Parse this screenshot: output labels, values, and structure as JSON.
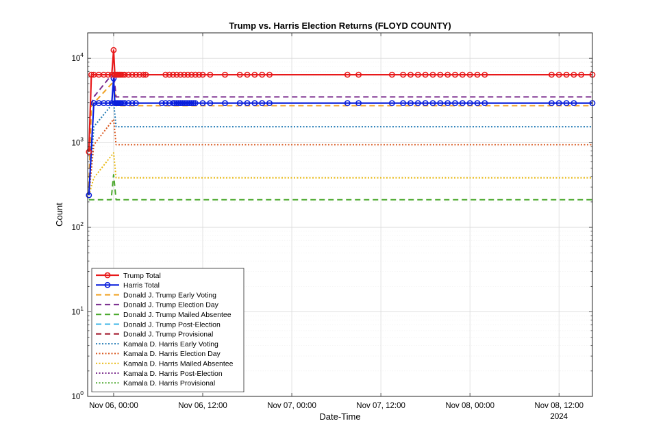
{
  "chart_data": {
    "type": "line",
    "title": "Trump vs. Harris Election Returns (FLOYD COUNTY)",
    "xlabel": "Date-Time",
    "ylabel": "Count",
    "y_scale": "log",
    "ylim": [
      1,
      20000
    ],
    "xlim": [
      "2024-11-05 20:30",
      "2024-11-08 16:30"
    ],
    "x_ticks": [
      "Nov 06, 00:00",
      "Nov 06, 12:00",
      "Nov 07, 00:00",
      "Nov 07, 12:00",
      "Nov 08, 00:00",
      "Nov 08, 12:00"
    ],
    "x_tick_times": [
      "2024-11-06 00:00",
      "2024-11-06 12:00",
      "2024-11-07 00:00",
      "2024-11-07 12:00",
      "2024-11-08 00:00",
      "2024-11-08 12:00"
    ],
    "x_year_label": "2024",
    "y_ticks": [
      {
        "value": 1,
        "base": "10",
        "exp": "0"
      },
      {
        "value": 10,
        "base": "10",
        "exp": "1"
      },
      {
        "value": 100,
        "base": "10",
        "exp": "2"
      },
      {
        "value": 1000,
        "base": "10",
        "exp": "3"
      },
      {
        "value": 10000,
        "base": "10",
        "exp": "4"
      }
    ],
    "grid": true,
    "legend_position": "bottom-left",
    "series": [
      {
        "name": "Trump Total",
        "color": "#e8191a",
        "style": "solid",
        "marker": "circle",
        "x": [
          "2024-11-05 20:40",
          "2024-11-05 21:00",
          "2024-11-05 21:20",
          "2024-11-05 22:00",
          "2024-11-05 22:40",
          "2024-11-05 23:15",
          "2024-11-05 23:45",
          "2024-11-06 00:00",
          "2024-11-06 00:10",
          "2024-11-06 00:20",
          "2024-11-06 00:30",
          "2024-11-06 00:40",
          "2024-11-06 00:50",
          "2024-11-06 01:00",
          "2024-11-06 01:15",
          "2024-11-06 01:30",
          "2024-11-06 02:00",
          "2024-11-06 02:30",
          "2024-11-06 03:00",
          "2024-11-06 03:30",
          "2024-11-06 04:00",
          "2024-11-06 04:20",
          "2024-11-06 07:00",
          "2024-11-06 07:30",
          "2024-11-06 08:00",
          "2024-11-06 08:30",
          "2024-11-06 09:00",
          "2024-11-06 09:30",
          "2024-11-06 10:00",
          "2024-11-06 10:30",
          "2024-11-06 11:00",
          "2024-11-06 11:30",
          "2024-11-06 12:00",
          "2024-11-06 13:00",
          "2024-11-06 15:00",
          "2024-11-06 17:00",
          "2024-11-06 18:00",
          "2024-11-06 19:00",
          "2024-11-06 20:00",
          "2024-11-06 21:00",
          "2024-11-07 07:30",
          "2024-11-07 09:00",
          "2024-11-07 13:30",
          "2024-11-07 15:00",
          "2024-11-07 16:00",
          "2024-11-07 17:00",
          "2024-11-07 18:00",
          "2024-11-07 19:00",
          "2024-11-07 20:00",
          "2024-11-07 21:00",
          "2024-11-07 22:00",
          "2024-11-07 23:00",
          "2024-11-08 00:00",
          "2024-11-08 01:00",
          "2024-11-08 02:00",
          "2024-11-08 11:00",
          "2024-11-08 12:00",
          "2024-11-08 13:00",
          "2024-11-08 14:00",
          "2024-11-08 15:00",
          "2024-11-08 16:30"
        ],
        "y": [
          780,
          6400,
          6400,
          6400,
          6400,
          6400,
          6400,
          12500,
          6400,
          6400,
          6400,
          6400,
          6400,
          6400,
          6400,
          6400,
          6400,
          6400,
          6400,
          6400,
          6400,
          6400,
          6400,
          6400,
          6400,
          6400,
          6400,
          6400,
          6400,
          6400,
          6400,
          6400,
          6400,
          6400,
          6400,
          6400,
          6400,
          6400,
          6400,
          6400,
          6400,
          6400,
          6400,
          6400,
          6400,
          6400,
          6400,
          6400,
          6400,
          6400,
          6400,
          6400,
          6400,
          6400,
          6400,
          6400,
          6400,
          6400,
          6400,
          6400,
          6400
        ]
      },
      {
        "name": "Harris Total",
        "color": "#0a1fdc",
        "style": "solid",
        "marker": "circle",
        "x": [
          "2024-11-05 20:40",
          "2024-11-05 21:20",
          "2024-11-05 22:00",
          "2024-11-05 22:40",
          "2024-11-05 23:15",
          "2024-11-05 23:45",
          "2024-11-06 00:00",
          "2024-11-06 00:10",
          "2024-11-06 00:20",
          "2024-11-06 00:30",
          "2024-11-06 00:40",
          "2024-11-06 00:50",
          "2024-11-06 01:00",
          "2024-11-06 01:15",
          "2024-11-06 01:30",
          "2024-11-06 02:00",
          "2024-11-06 02:30",
          "2024-11-06 03:00",
          "2024-11-06 06:30",
          "2024-11-06 07:00",
          "2024-11-06 07:30",
          "2024-11-06 08:00",
          "2024-11-06 08:15",
          "2024-11-06 08:30",
          "2024-11-06 08:45",
          "2024-11-06 09:00",
          "2024-11-06 09:15",
          "2024-11-06 09:30",
          "2024-11-06 09:45",
          "2024-11-06 10:00",
          "2024-11-06 10:15",
          "2024-11-06 10:30",
          "2024-11-06 10:45",
          "2024-11-06 11:00",
          "2024-11-06 12:00",
          "2024-11-06 13:00",
          "2024-11-06 15:00",
          "2024-11-06 17:00",
          "2024-11-06 18:00",
          "2024-11-06 19:00",
          "2024-11-06 20:00",
          "2024-11-06 21:00",
          "2024-11-07 07:30",
          "2024-11-07 09:00",
          "2024-11-07 13:30",
          "2024-11-07 15:00",
          "2024-11-07 16:00",
          "2024-11-07 17:00",
          "2024-11-07 18:00",
          "2024-11-07 19:00",
          "2024-11-07 20:00",
          "2024-11-07 21:00",
          "2024-11-07 22:00",
          "2024-11-07 23:00",
          "2024-11-08 00:00",
          "2024-11-08 01:00",
          "2024-11-08 02:00",
          "2024-11-08 11:00",
          "2024-11-08 12:00",
          "2024-11-08 13:00",
          "2024-11-08 14:00",
          "2024-11-08 16:30"
        ],
        "y": [
          240,
          2950,
          2950,
          2950,
          2950,
          2950,
          5800,
          2950,
          2950,
          2950,
          2950,
          2950,
          2950,
          2950,
          2950,
          2950,
          2950,
          2950,
          2950,
          2950,
          2950,
          2950,
          2950,
          2950,
          2950,
          2950,
          2950,
          2950,
          2950,
          2950,
          2950,
          2950,
          2950,
          2950,
          2950,
          2950,
          2950,
          2950,
          2950,
          2950,
          2950,
          2950,
          2950,
          2950,
          2950,
          2950,
          2950,
          2950,
          2950,
          2950,
          2950,
          2950,
          2950,
          2950,
          2950,
          2950,
          2950,
          2950,
          2950,
          2950,
          2950,
          2950
        ]
      },
      {
        "name": "Donald J. Trump Early Voting",
        "color": "#f0a020",
        "style": "dashed",
        "x": [
          "2024-11-05 20:40",
          "2024-11-05 21:00",
          "2024-11-06 00:00",
          "2024-11-06 00:20",
          "2024-11-08 16:30"
        ],
        "y": [
          300,
          2750,
          5300,
          2750,
          2750
        ]
      },
      {
        "name": "Donald J. Trump Election Day",
        "color": "#7b2d8e",
        "style": "dashed",
        "x": [
          "2024-11-05 21:00",
          "2024-11-05 21:20",
          "2024-11-06 00:00",
          "2024-11-06 00:20",
          "2024-11-08 16:30"
        ],
        "y": [
          2800,
          3500,
          6800,
          3500,
          3500
        ]
      },
      {
        "name": "Donald J. Trump Mailed Absentee",
        "color": "#4aa82c",
        "style": "dashed",
        "x": [
          "2024-11-05 20:40",
          "2024-11-05 21:00",
          "2024-11-05 23:40",
          "2024-11-06 00:00",
          "2024-11-06 00:20",
          "2024-11-08 16:30"
        ],
        "y": [
          212,
          212,
          212,
          420,
          212,
          212
        ]
      },
      {
        "name": "Donald J. Trump Post-Election",
        "color": "#3cb4e6",
        "style": "dashed",
        "x": [],
        "y": []
      },
      {
        "name": "Donald J. Trump Provisional",
        "color": "#a2192d",
        "style": "dashed",
        "x": [],
        "y": []
      },
      {
        "name": "Kamala D. Harris Early Voting",
        "color": "#1f78b4",
        "style": "dotted",
        "x": [
          "2024-11-05 20:40",
          "2024-11-05 21:20",
          "2024-11-06 00:00",
          "2024-11-06 00:20",
          "2024-11-08 16:30"
        ],
        "y": [
          240,
          1550,
          3000,
          1550,
          1550
        ]
      },
      {
        "name": "Kamala D. Harris Election Day",
        "color": "#d9541a",
        "style": "dotted",
        "x": [
          "2024-11-05 20:40",
          "2024-11-05 21:20",
          "2024-11-06 00:00",
          "2024-11-06 00:20",
          "2024-11-08 16:30"
        ],
        "y": [
          240,
          950,
          1900,
          950,
          950
        ]
      },
      {
        "name": "Kamala D. Harris Mailed Absentee",
        "color": "#e8b810",
        "style": "dotted",
        "x": [
          "2024-11-05 20:40",
          "2024-11-05 21:20",
          "2024-11-06 00:00",
          "2024-11-06 00:20",
          "2024-11-08 16:30"
        ],
        "y": [
          240,
          385,
          760,
          385,
          385
        ]
      },
      {
        "name": "Kamala D. Harris Post-Election",
        "color": "#7b2d8e",
        "style": "dotted",
        "x": [],
        "y": []
      },
      {
        "name": "Kamala D. Harris Provisional",
        "color": "#4aa82c",
        "style": "dotted",
        "x": [],
        "y": []
      }
    ]
  }
}
